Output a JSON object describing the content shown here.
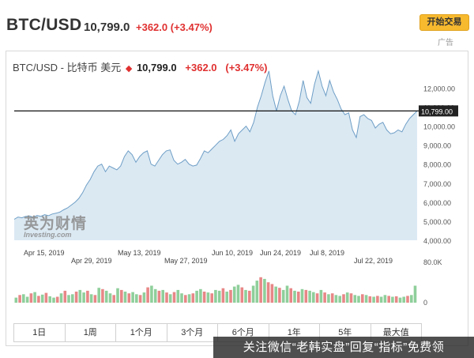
{
  "header": {
    "symbol": "BTC/USD",
    "price": "10,799.0",
    "change": "+362.0 (+3.47%)"
  },
  "cta": {
    "button_label": "开始交易",
    "ad_label": "广告"
  },
  "chart_header": {
    "title": "BTC/USD - 比特币 美元",
    "price": "10,799.0",
    "change": "+362.0",
    "change_pct": "(+3.47%)"
  },
  "watermark": {
    "cn": "英为财情",
    "en": "Investing.com"
  },
  "tabs": [
    "1日",
    "1周",
    "1个月",
    "3个月",
    "6个月",
    "1年",
    "5年",
    "最大值"
  ],
  "banner": "关注微信“老韩实盘”回复“指标”免费领",
  "colors": {
    "up": "#e03030",
    "area_fill": "#dbe9f3",
    "area_line": "#6e9ec6",
    "vol_up": "#8fcf9b",
    "vol_down": "#e88787",
    "cta": "#f7b92e"
  },
  "chart_data": {
    "type": "area",
    "x_ticks_row1": [
      "Apr 15, 2019",
      "May 13, 2019",
      "Jun 10, 2019",
      "Jun 24, 2019",
      "Jul 8, 2019"
    ],
    "x_ticks_row2": [
      "Apr 29, 2019",
      "May 27, 2019",
      "Jul 22, 2019"
    ],
    "y_ticks": [
      "12,000.00",
      "11,000.00",
      "10,000.00",
      "9,000.00",
      "8,000.00",
      "7,000.00",
      "6,000.00",
      "5,000.00",
      "4,000.00"
    ],
    "ylim": [
      4000,
      12600
    ],
    "current_price_label": "10,799.00",
    "current_price": 10799,
    "volume_axis_labels": [
      "80.0K",
      "0"
    ],
    "price_series": [
      5100,
      5220,
      5180,
      5250,
      5280,
      5210,
      5300,
      5260,
      5340,
      5290,
      5380,
      5420,
      5480,
      5600,
      5700,
      5850,
      6000,
      6200,
      6500,
      6900,
      7200,
      7600,
      7900,
      8000,
      7600,
      7900,
      7800,
      7700,
      7900,
      8400,
      8700,
      8500,
      8100,
      8400,
      8600,
      8700,
      8000,
      7900,
      8200,
      8500,
      8700,
      8750,
      8200,
      8000,
      8100,
      8250,
      8000,
      7900,
      7950,
      8300,
      8700,
      8600,
      8800,
      9000,
      9200,
      9300,
      9500,
      9800,
      9200,
      9600,
      9800,
      10000,
      9700,
      10200,
      11000,
      11600,
      12300,
      12900,
      11600,
      10800,
      11600,
      12100,
      11400,
      10800,
      10600,
      11300,
      12400,
      11500,
      11200,
      12200,
      12900,
      12100,
      11600,
      12400,
      11800,
      11400,
      10900,
      10600,
      10700,
      9800,
      9400,
      10500,
      10600,
      10400,
      10300,
      9900,
      10100,
      10200,
      9800,
      9600,
      9650,
      9800,
      9700,
      10100,
      10400,
      10600,
      10799
    ],
    "volume_series": [
      12,
      18,
      20,
      14,
      22,
      25,
      16,
      19,
      23,
      15,
      12,
      14,
      22,
      28,
      18,
      20,
      26,
      30,
      24,
      28,
      20,
      18,
      35,
      32,
      28,
      22,
      18,
      34,
      30,
      26,
      22,
      25,
      20,
      18,
      24,
      36,
      40,
      32,
      28,
      30,
      24,
      20,
      25,
      30,
      22,
      18,
      20,
      22,
      28,
      32,
      26,
      24,
      22,
      30,
      28,
      34,
      26,
      30,
      38,
      42,
      36,
      30,
      28,
      40,
      52,
      60,
      56,
      48,
      44,
      38,
      35,
      30,
      40,
      34,
      28,
      26,
      32,
      30,
      28,
      25,
      22,
      30,
      24,
      20,
      22,
      18,
      16,
      20,
      24,
      22,
      18,
      16,
      20,
      18,
      15,
      14,
      16,
      14,
      18,
      16,
      14,
      15,
      12,
      14,
      16,
      18,
      40
    ],
    "volume_up_flags": [
      1,
      0,
      1,
      1,
      0,
      1,
      0,
      1,
      0,
      1,
      1,
      0,
      1,
      0,
      1,
      1,
      0,
      1,
      1,
      0,
      1,
      0,
      1,
      0,
      1,
      1,
      0,
      1,
      0,
      1,
      0,
      1,
      1,
      0,
      1,
      0,
      1,
      1,
      0,
      1,
      0,
      1,
      0,
      1,
      1,
      0,
      1,
      0,
      1,
      1,
      0,
      1,
      0,
      1,
      1,
      0,
      1,
      0,
      1,
      1,
      0,
      1,
      0,
      1,
      1,
      0,
      1,
      0,
      0,
      1,
      0,
      1,
      1,
      0,
      1,
      0,
      1,
      0,
      1,
      1,
      0,
      1,
      0,
      1,
      0,
      1,
      1,
      0,
      1,
      0,
      1,
      1,
      0,
      1,
      0,
      1,
      0,
      1,
      1,
      0,
      1,
      0,
      1,
      1,
      0,
      1,
      1
    ]
  }
}
